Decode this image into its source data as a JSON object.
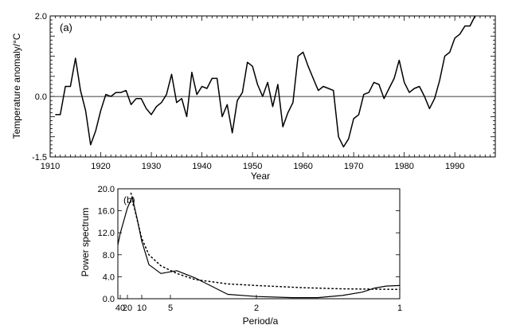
{
  "chart_data": [
    {
      "type": "line",
      "panel_label": "(a)",
      "xlabel": "Year",
      "ylabel": "Temperature anomaly/°C",
      "xlim": [
        1910,
        1998
      ],
      "ylim": [
        -1.5,
        2.0
      ],
      "x_ticks": [
        "1910",
        "1920",
        "1930",
        "1940",
        "1950",
        "1960",
        "1970",
        "1980",
        "1990"
      ],
      "y_ticks": [
        "2.0",
        "0.0",
        "-1.5"
      ],
      "reference_line": 0.0,
      "grid": false,
      "series": [
        {
          "x": [
            1911,
            1912,
            1913,
            1914,
            1915,
            1916,
            1917,
            1918,
            1919,
            1920,
            1921,
            1922,
            1923,
            1924,
            1925,
            1926,
            1927,
            1928,
            1929,
            1930,
            1931,
            1932,
            1933,
            1934,
            1935,
            1936,
            1937,
            1938,
            1939,
            1940,
            1941,
            1942,
            1943,
            1944,
            1945,
            1946,
            1947,
            1948,
            1949,
            1950,
            1951,
            1952,
            1953,
            1954,
            1955,
            1956,
            1957,
            1958,
            1959,
            1960,
            1961,
            1962,
            1963,
            1964,
            1965,
            1966,
            1967,
            1968,
            1969,
            1970,
            1971,
            1972,
            1973,
            1974,
            1975,
            1976,
            1977,
            1978,
            1979,
            1980,
            1981,
            1982,
            1983,
            1984,
            1985,
            1986,
            1987,
            1988,
            1989,
            1990,
            1991,
            1992,
            1993,
            1994
          ],
          "values": [
            -0.45,
            -0.45,
            0.25,
            0.25,
            0.95,
            0.15,
            -0.35,
            -1.2,
            -0.85,
            -0.35,
            0.05,
            0.0,
            0.1,
            0.1,
            0.15,
            -0.2,
            -0.05,
            -0.05,
            -0.3,
            -0.45,
            -0.25,
            -0.15,
            0.05,
            0.55,
            -0.15,
            -0.05,
            -0.5,
            0.6,
            0.05,
            0.25,
            0.2,
            0.45,
            0.45,
            -0.5,
            -0.2,
            -0.9,
            -0.1,
            0.1,
            0.85,
            0.75,
            0.3,
            0.0,
            0.35,
            -0.25,
            0.3,
            -0.75,
            -0.4,
            -0.15,
            1.0,
            1.1,
            0.75,
            0.45,
            0.15,
            0.25,
            0.2,
            0.15,
            -1.0,
            -1.25,
            -1.05,
            -0.55,
            -0.45,
            0.05,
            0.1,
            0.35,
            0.3,
            -0.05,
            0.2,
            0.45,
            0.9,
            0.35,
            0.1,
            0.2,
            0.25,
            0.0,
            -0.3,
            -0.05,
            0.4,
            1.0,
            1.1,
            1.45,
            1.55,
            1.75,
            1.75,
            2.0
          ]
        }
      ]
    },
    {
      "type": "line",
      "panel_label": "(b)",
      "xlabel": "Period/a",
      "ylabel": "Power spectrum",
      "x_scale": "reciprocal",
      "xlim": [
        60,
        1
      ],
      "ylim": [
        0.0,
        20.0
      ],
      "x_ticks": [
        "40",
        "20",
        "10",
        "5",
        "2",
        "1"
      ],
      "y_ticks": [
        "0.0",
        "4.0",
        "8.0",
        "12.0",
        "16.0",
        "20.0"
      ],
      "grid": false,
      "series": [
        {
          "style": "solid",
          "x": [
            60,
            40,
            20,
            15,
            12,
            10,
            8,
            6,
            4.5,
            3.5,
            2.5,
            2,
            1.6,
            1.4,
            1.25,
            1.15,
            1.1,
            1.05,
            1
          ],
          "values": [
            9.8,
            11.9,
            16.5,
            18.5,
            14.7,
            10.5,
            6.2,
            4.6,
            5.1,
            3.8,
            0.8,
            0.4,
            0.2,
            0.2,
            0.6,
            1.2,
            1.9,
            2.3,
            2.4
          ]
        },
        {
          "style": "dotted",
          "x": [
            16,
            12,
            10,
            8,
            6,
            4.5,
            3.5,
            2.5,
            2,
            1.5,
            1.25,
            1
          ],
          "values": [
            19.2,
            14.5,
            11.0,
            8.0,
            6.0,
            4.6,
            3.5,
            2.7,
            2.4,
            2.0,
            1.8,
            1.7
          ]
        }
      ]
    }
  ]
}
